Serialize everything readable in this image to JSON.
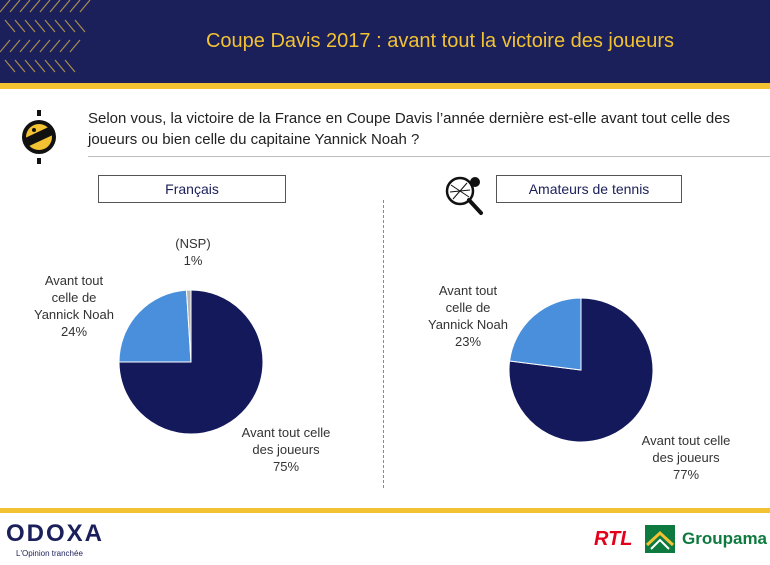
{
  "header": {
    "title": "Coupe Davis 2017 : avant tout la victoire des joueurs"
  },
  "question": {
    "text": "Selon vous, la victoire de la France en Coupe Davis l’année dernière est-elle avant tout celle des joueurs ou bien celle du capitaine Yannick Noah ?"
  },
  "panels": {
    "left_label": "Français",
    "right_label": "Amateurs de tennis"
  },
  "colors": {
    "navy": "#13195a",
    "blue": "#4a8fdb",
    "gray": "#b5b5b5",
    "gold": "#f2c233"
  },
  "icons": [
    "question-badge-icon",
    "tennis-racket-icon",
    "groupama-mark-icon"
  ],
  "chart_data": [
    {
      "type": "pie",
      "labels": [
        "Avant tout celle des joueurs",
        "Avant tout celle de Yannick Noah",
        "(NSP)"
      ],
      "values": [
        75,
        24,
        1
      ],
      "value_labels": [
        "75%",
        "24%",
        "1%"
      ]
    },
    {
      "type": "pie",
      "labels": [
        "Avant tout celle des joueurs",
        "Avant tout celle de Yannick Noah"
      ],
      "values": [
        77,
        23
      ],
      "value_labels": [
        "77%",
        "23%"
      ]
    }
  ],
  "left_texts": {
    "joueurs": [
      "Avant tout celle",
      "des joueurs",
      "75%"
    ],
    "noah": [
      "Avant tout",
      "celle de",
      "Yannick Noah",
      "24%"
    ],
    "nsp": [
      "(NSP)",
      "1%"
    ]
  },
  "right_texts": {
    "joueurs": [
      "Avant tout celle",
      "des joueurs",
      "77%"
    ],
    "noah": [
      "Avant tout",
      "celle de",
      "Yannick Noah",
      "23%"
    ]
  },
  "footer": {
    "odoxa": "ODOXA",
    "odoxa_tagline": "L'Opinion tranchée",
    "rtl": "RTL",
    "groupama": "Groupama"
  }
}
